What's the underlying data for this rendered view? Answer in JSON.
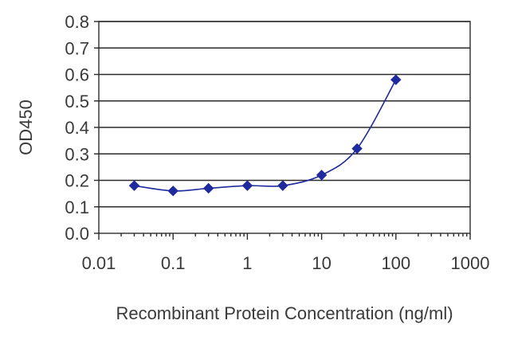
{
  "chart_data": {
    "type": "line",
    "title": "",
    "xlabel": "Recombinant Protein Concentration (ng/ml)",
    "ylabel": "OD450",
    "x_scale": "log",
    "xlim": [
      0.01,
      1000
    ],
    "ylim": [
      0.0,
      0.8
    ],
    "x_ticks": [
      "0.01",
      "0.1",
      "1",
      "10",
      "100",
      "1000"
    ],
    "y_ticks": [
      "0.0",
      "0.1",
      "0.2",
      "0.3",
      "0.4",
      "0.5",
      "0.6",
      "0.7",
      "0.8"
    ],
    "grid": "horizontal",
    "legend": "none",
    "series": [
      {
        "color": "#1f2a9e",
        "marker": "diamond",
        "x": [
          0.03,
          0.1,
          0.3,
          1,
          3,
          10,
          30,
          100
        ],
        "y": [
          0.18,
          0.16,
          0.17,
          0.18,
          0.18,
          0.22,
          0.32,
          0.58
        ]
      }
    ]
  }
}
